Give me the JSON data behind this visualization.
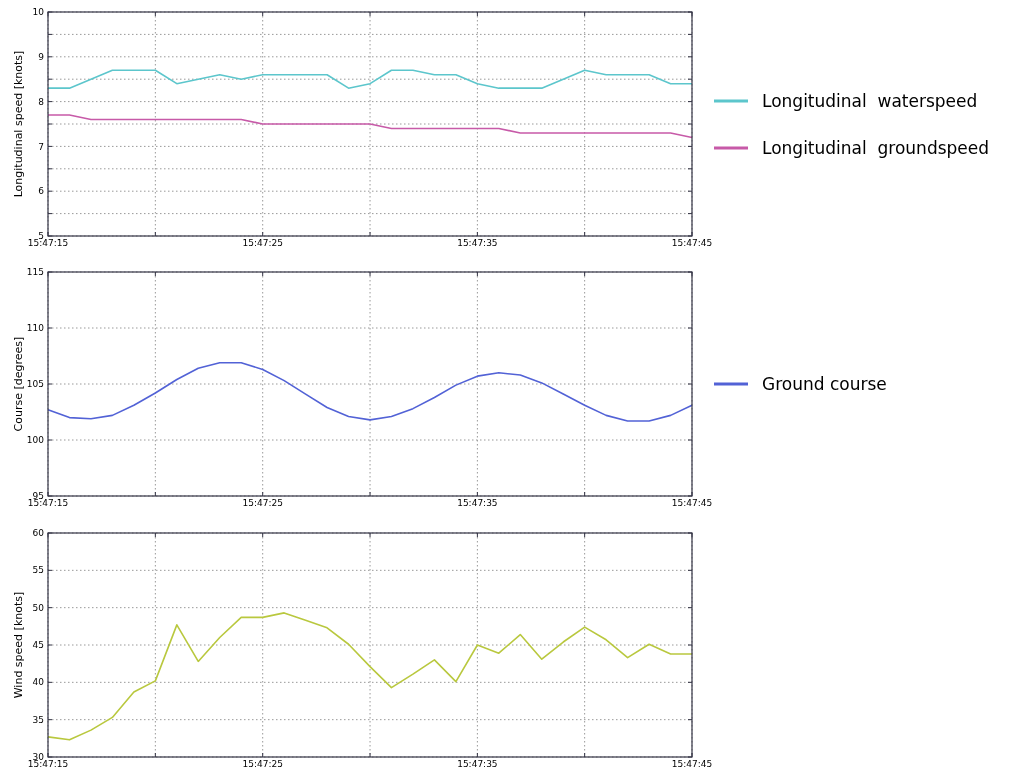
{
  "chart_data": [
    {
      "type": "line",
      "ylabel": "Longitudinal speed [knots]",
      "x": [
        15.7875,
        15.787778,
        15.788056,
        15.788333,
        15.788611,
        15.788889,
        15.789167,
        15.789444,
        15.789722,
        15.79,
        15.790278,
        15.790556,
        15.790833,
        15.791111,
        15.791389,
        15.791667,
        15.791944,
        15.792222,
        15.7925,
        15.792778,
        15.793056,
        15.793333,
        15.793611,
        15.793889,
        15.794167,
        15.794444,
        15.794722,
        15.795,
        15.795278,
        15.795556,
        15.795833
      ],
      "xlim": [
        15.7875,
        15.795833
      ],
      "xticks": [
        {
          "value": 15.7875,
          "label": "15:47:15"
        },
        {
          "value": 15.788889,
          "label": null
        },
        {
          "value": 15.790278,
          "label": "15:47:25"
        },
        {
          "value": 15.791667,
          "label": null
        },
        {
          "value": 15.793056,
          "label": "15:47:35"
        },
        {
          "value": 15.794444,
          "label": null
        },
        {
          "value": 15.795833,
          "label": "15:47:45"
        }
      ],
      "ylim": [
        5,
        10
      ],
      "yticks": [
        5,
        {
          "value": 5.5,
          "label": null
        },
        6,
        {
          "value": 6.5,
          "label": null
        },
        7,
        {
          "value": 7.5,
          "label": null
        },
        8,
        {
          "value": 8.5,
          "label": null
        },
        9,
        {
          "value": 9.5,
          "label": null
        },
        10
      ],
      "grid": true,
      "legend": "right",
      "series": [
        {
          "name": "Longitudinal  waterspeed",
          "color": "#5cc6cc",
          "values": [
            8.3,
            8.3,
            8.5,
            8.7,
            8.7,
            8.7,
            8.4,
            8.5,
            8.6,
            8.5,
            8.6,
            8.6,
            8.6,
            8.6,
            8.3,
            8.4,
            8.7,
            8.7,
            8.6,
            8.6,
            8.4,
            8.3,
            8.3,
            8.3,
            8.5,
            8.7,
            8.6,
            8.6,
            8.6,
            8.4,
            8.4
          ]
        },
        {
          "name": "Longitudinal  groundspeed",
          "color": "#c75aa8",
          "values": [
            7.7,
            7.7,
            7.6,
            7.6,
            7.6,
            7.6,
            7.6,
            7.6,
            7.6,
            7.6,
            7.5,
            7.5,
            7.5,
            7.5,
            7.5,
            7.5,
            7.4,
            7.4,
            7.4,
            7.4,
            7.4,
            7.4,
            7.3,
            7.3,
            7.3,
            7.3,
            7.3,
            7.3,
            7.3,
            7.3,
            7.2
          ]
        }
      ]
    },
    {
      "type": "line",
      "ylabel": "Course [degrees]",
      "x": [
        15.7875,
        15.787778,
        15.788056,
        15.788333,
        15.788611,
        15.788889,
        15.789167,
        15.789444,
        15.789722,
        15.79,
        15.790278,
        15.790556,
        15.790833,
        15.791111,
        15.791389,
        15.791667,
        15.791944,
        15.792222,
        15.7925,
        15.792778,
        15.793056,
        15.793333,
        15.793611,
        15.793889,
        15.794167,
        15.794444,
        15.794722,
        15.795,
        15.795278,
        15.795556,
        15.795833
      ],
      "xlim": [
        15.7875,
        15.795833
      ],
      "xticks": [
        {
          "value": 15.7875,
          "label": "15:47:15"
        },
        {
          "value": 15.788889,
          "label": null
        },
        {
          "value": 15.790278,
          "label": "15:47:25"
        },
        {
          "value": 15.791667,
          "label": null
        },
        {
          "value": 15.793056,
          "label": "15:47:35"
        },
        {
          "value": 15.794444,
          "label": null
        },
        {
          "value": 15.795833,
          "label": "15:47:45"
        }
      ],
      "ylim": [
        95,
        115
      ],
      "yticks": [
        95,
        100,
        105,
        110,
        115
      ],
      "grid": true,
      "legend": "right",
      "series": [
        {
          "name": "Ground course",
          "color": "#5262d6",
          "values": [
            102.7,
            102.0,
            101.9,
            102.2,
            103.1,
            104.2,
            105.4,
            106.4,
            106.9,
            106.9,
            106.3,
            105.3,
            104.1,
            102.9,
            102.1,
            101.8,
            102.1,
            102.8,
            103.8,
            104.9,
            105.7,
            106.0,
            105.8,
            105.1,
            104.1,
            103.1,
            102.2,
            101.7,
            101.7,
            102.2,
            103.1
          ]
        }
      ]
    },
    {
      "type": "line",
      "ylabel": "Wind speed [knots]",
      "x": [
        15.7875,
        15.787778,
        15.788056,
        15.788333,
        15.788611,
        15.788889,
        15.789167,
        15.789444,
        15.789722,
        15.79,
        15.790278,
        15.790556,
        15.790833,
        15.791111,
        15.791389,
        15.791667,
        15.791944,
        15.792222,
        15.7925,
        15.792778,
        15.793056,
        15.793333,
        15.793611,
        15.793889,
        15.794167,
        15.794444,
        15.794722,
        15.795,
        15.795278,
        15.795556,
        15.795833
      ],
      "xlim": [
        15.7875,
        15.795833
      ],
      "xticks": [
        {
          "value": 15.7875,
          "label": "15:47:15"
        },
        {
          "value": 15.788889,
          "label": null
        },
        {
          "value": 15.790278,
          "label": "15:47:25"
        },
        {
          "value": 15.791667,
          "label": null
        },
        {
          "value": 15.793056,
          "label": "15:47:35"
        },
        {
          "value": 15.794444,
          "label": null
        },
        {
          "value": 15.795833,
          "label": "15:47:45"
        }
      ],
      "ylim": [
        30,
        60
      ],
      "yticks": [
        30,
        35,
        40,
        45,
        50,
        55,
        60
      ],
      "grid": true,
      "series": [
        {
          "color": "#b9c83e",
          "values": [
            32.7,
            32.3,
            33.6,
            35.3,
            38.7,
            40.2,
            47.7,
            42.8,
            46.0,
            48.7,
            48.7,
            49.3,
            48.3,
            47.3,
            45.1,
            42.1,
            39.3,
            41.1,
            43.0,
            40.1,
            45.0,
            43.9,
            46.4,
            43.1,
            45.4,
            47.4,
            45.7,
            43.3,
            45.1,
            43.8,
            43.8
          ]
        }
      ]
    }
  ]
}
